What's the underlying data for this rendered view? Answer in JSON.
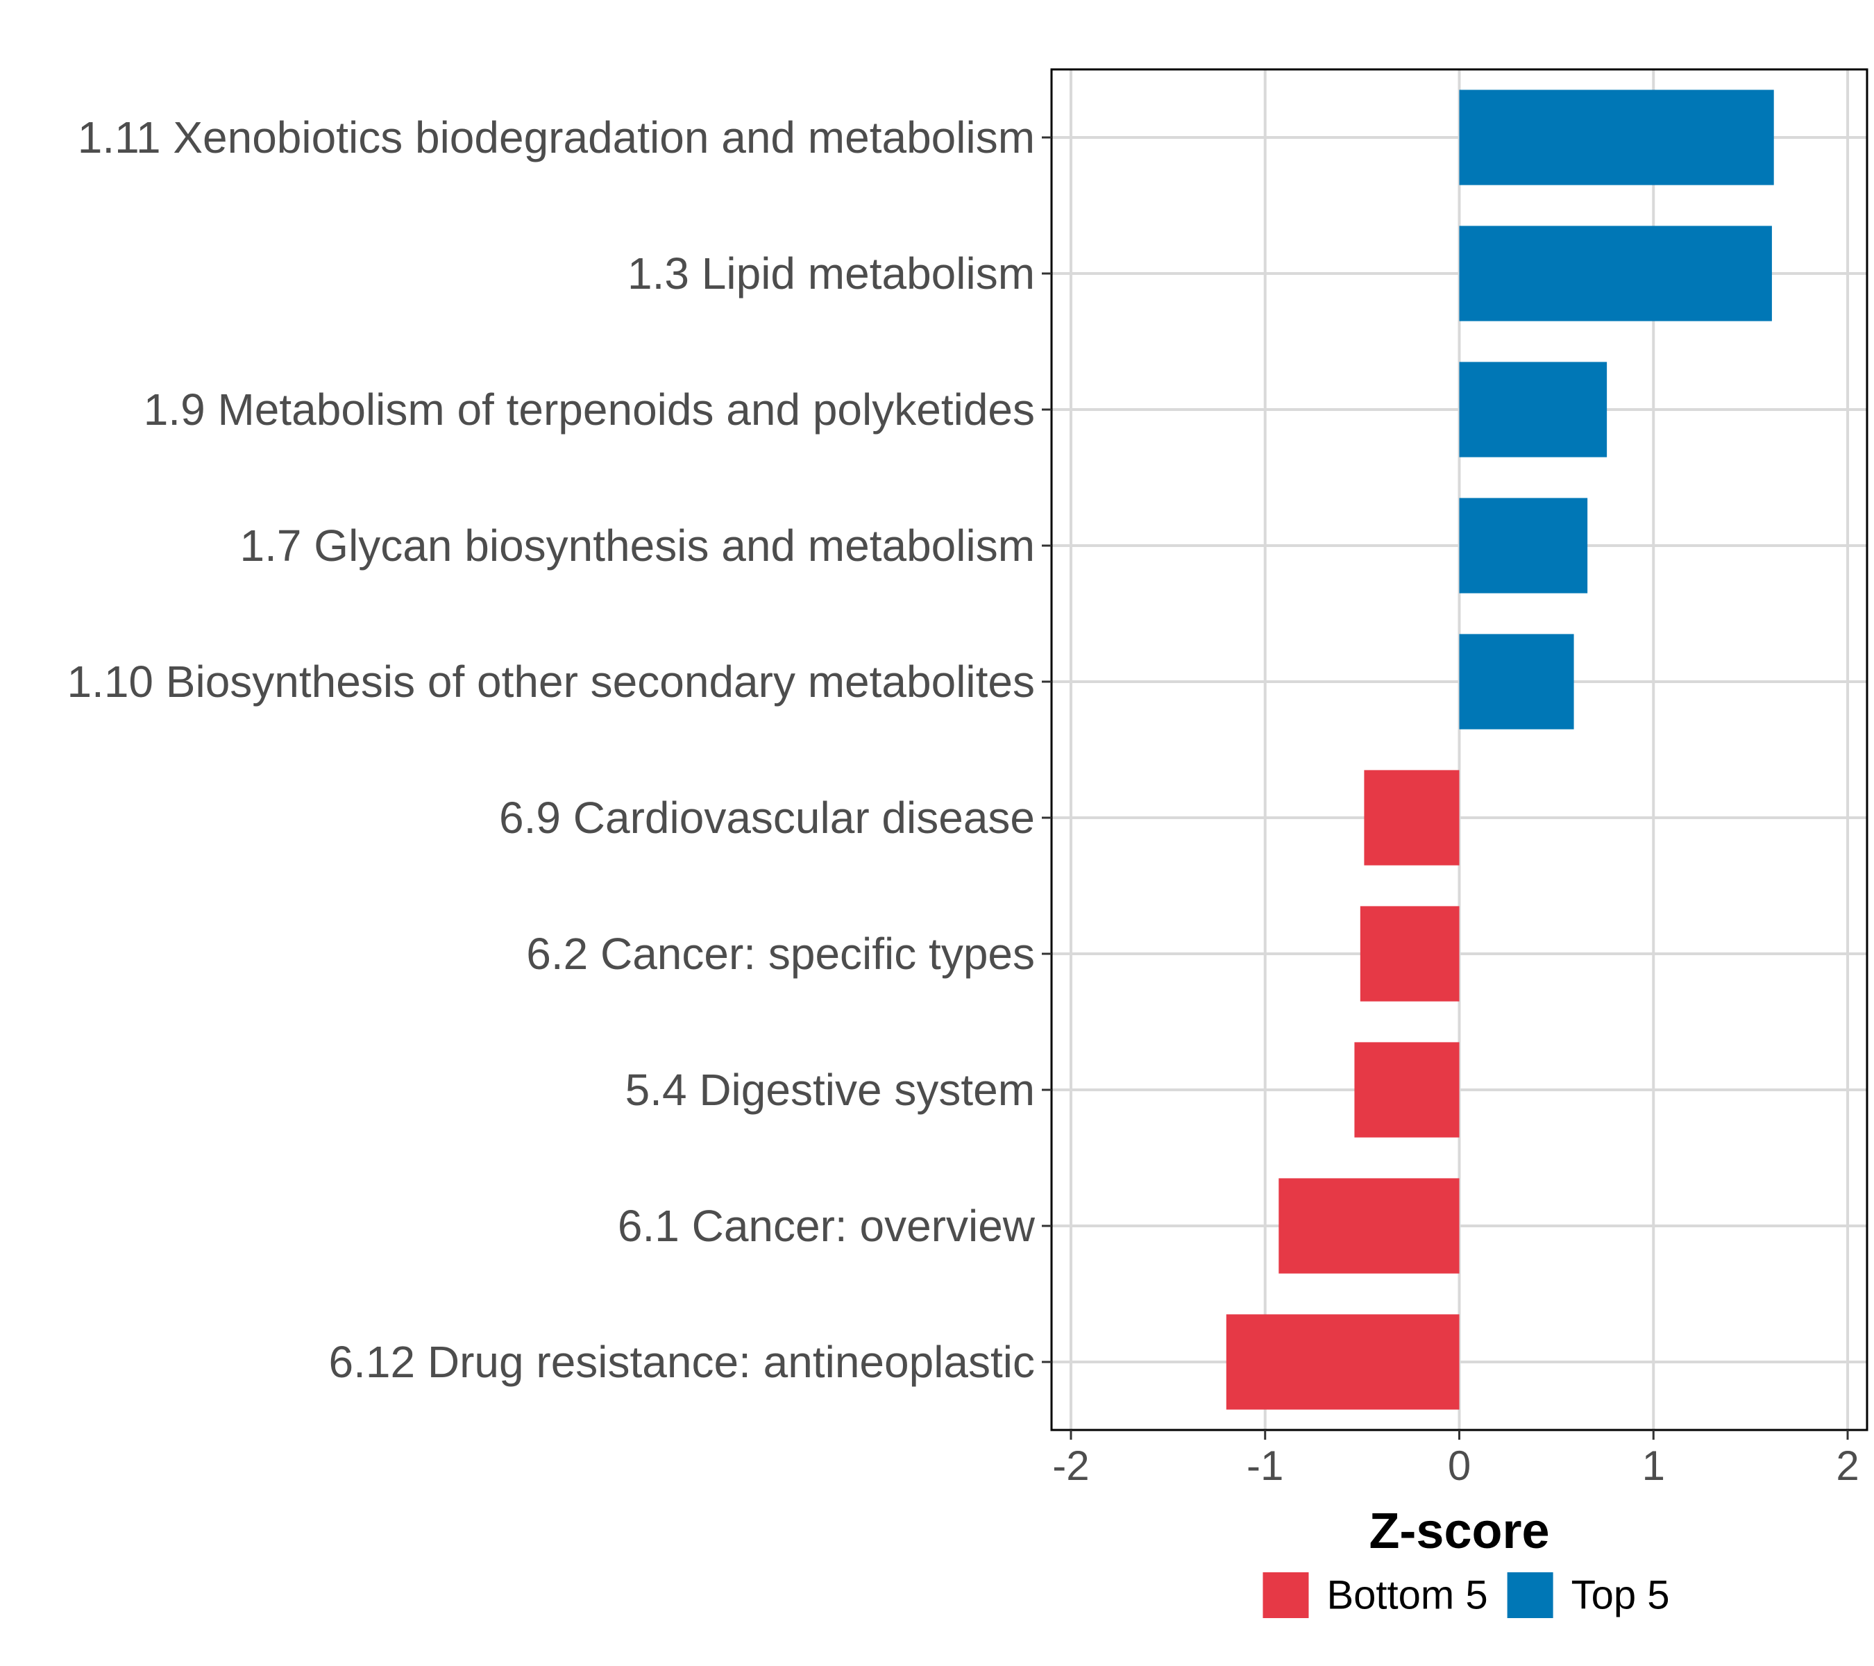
{
  "chart_data": {
    "type": "bar",
    "orientation": "horizontal",
    "categories": [
      "1.11 Xenobiotics biodegradation and metabolism",
      "1.3 Lipid metabolism",
      "1.9 Metabolism of terpenoids and polyketides",
      "1.7 Glycan biosynthesis and metabolism",
      "1.10 Biosynthesis of other secondary metabolites",
      "6.9 Cardiovascular disease",
      "6.2 Cancer: specific types",
      "5.4 Digestive system",
      "6.1 Cancer: overview",
      "6.12 Drug resistance: antineoplastic"
    ],
    "values": [
      1.62,
      1.61,
      0.76,
      0.66,
      0.59,
      -0.49,
      -0.51,
      -0.54,
      -0.93,
      -1.2
    ],
    "groups": [
      "Top 5",
      "Top 5",
      "Top 5",
      "Top 5",
      "Top 5",
      "Bottom 5",
      "Bottom 5",
      "Bottom 5",
      "Bottom 5",
      "Bottom 5"
    ],
    "xlabel": "Z-score",
    "ylabel": "",
    "xlim": [
      -2.1,
      2.1
    ],
    "xticks": [
      -2,
      -1,
      0,
      1,
      2
    ],
    "xtick_labels": [
      "-2",
      "-1",
      "0",
      "1",
      "2"
    ],
    "grid": true,
    "legend": {
      "position": "bottom",
      "entries": [
        {
          "label": "Bottom 5",
          "color": "#e63946"
        },
        {
          "label": "Top 5",
          "color": "#0077b6"
        }
      ]
    },
    "colors": {
      "Top 5": "#0077b6",
      "Bottom 5": "#e63946"
    }
  }
}
